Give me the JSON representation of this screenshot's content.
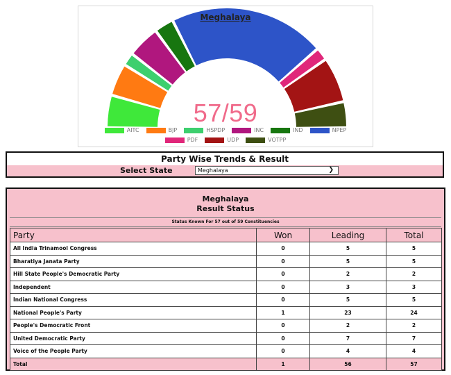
{
  "chart": {
    "title": "Meghalaya",
    "seat_count": "57/59",
    "parties": [
      {
        "name": "AITC",
        "seats": 5,
        "color": "#3fe83a"
      },
      {
        "name": "BJP",
        "seats": 5,
        "color": "#ff7a12"
      },
      {
        "name": "HSPDP",
        "seats": 2,
        "color": "#3dcf6e"
      },
      {
        "name": "INC",
        "seats": 5,
        "color": "#b0177e"
      },
      {
        "name": "IND",
        "seats": 3,
        "color": "#17760f"
      },
      {
        "name": "NPEP",
        "seats": 24,
        "color": "#2d54c8"
      },
      {
        "name": "PDF",
        "seats": 2,
        "color": "#e0277a"
      },
      {
        "name": "UDP",
        "seats": 7,
        "color": "#a31414"
      },
      {
        "name": "VOTPP",
        "seats": 4,
        "color": "#3e4f12"
      }
    ]
  },
  "trends": {
    "title": "Party Wise Trends & Result",
    "select_label": "Select State",
    "selected_state": "Meghalaya"
  },
  "results": {
    "state": "Meghalaya",
    "subtitle": "Result Status",
    "status_text": "Status Known For 57 out of 59 Constituencies",
    "columns": [
      "Party",
      "Won",
      "Leading",
      "Total"
    ],
    "rows": [
      [
        "All India Trinamool Congress",
        "0",
        "5",
        "5"
      ],
      [
        "Bharatiya Janata Party",
        "0",
        "5",
        "5"
      ],
      [
        "Hill State People's Democratic Party",
        "0",
        "2",
        "2"
      ],
      [
        "Independent",
        "0",
        "3",
        "3"
      ],
      [
        "Indian National Congress",
        "0",
        "5",
        "5"
      ],
      [
        "National People's Party",
        "1",
        "23",
        "24"
      ],
      [
        "People's Democratic Front",
        "0",
        "2",
        "2"
      ],
      [
        "United Democratic Party",
        "0",
        "7",
        "7"
      ],
      [
        "Voice of the People Party",
        "0",
        "4",
        "4"
      ]
    ],
    "total": [
      "Total",
      "1",
      "56",
      "57"
    ]
  }
}
